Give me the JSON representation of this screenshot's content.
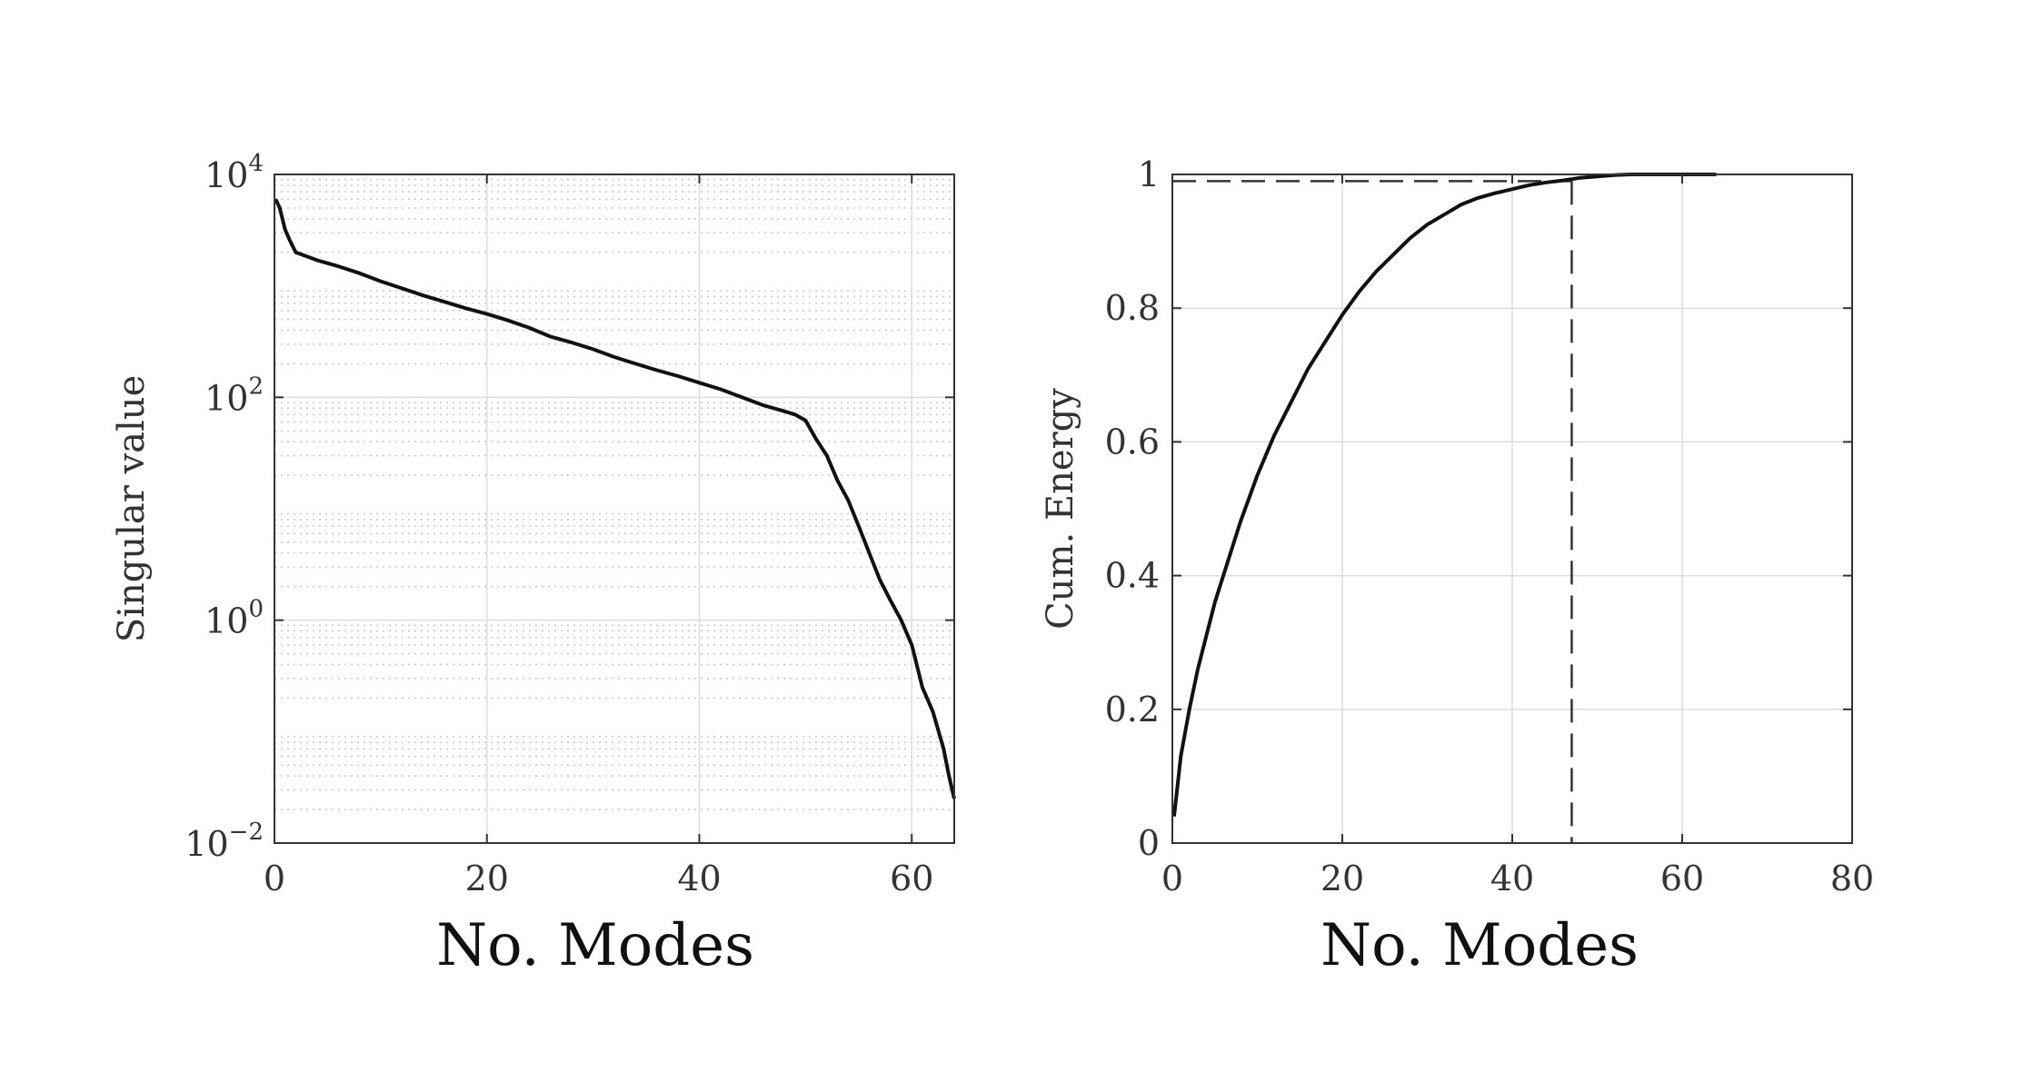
{
  "chart_data": [
    {
      "type": "line",
      "xlabel": "No. Modes",
      "ylabel": "Singular value",
      "yscale": "log",
      "xlim": [
        0,
        64
      ],
      "ylim": [
        0.01,
        10000
      ],
      "xticks": [
        0,
        20,
        40,
        60
      ],
      "x_tick_labels": [
        "0",
        "20",
        "40",
        "60"
      ],
      "yticks": [
        0.01,
        1,
        100,
        10000
      ],
      "y_tick_labels": [
        {
          "base": "10",
          "exp": "−2"
        },
        {
          "base": "10",
          "exp": "0"
        },
        {
          "base": "10",
          "exp": "2"
        },
        {
          "base": "10",
          "exp": "4"
        }
      ],
      "grid": true,
      "minor_grid": true,
      "line_color": "#111111",
      "x": [
        0.1,
        0.5,
        1,
        1.5,
        2,
        4,
        6,
        8,
        10,
        12,
        14,
        16,
        18,
        20,
        22,
        24,
        26,
        28,
        30,
        32,
        34,
        36,
        38,
        40,
        42,
        44,
        46,
        48,
        49,
        50,
        51,
        52,
        53,
        54,
        55,
        56,
        57,
        58,
        59,
        60,
        61,
        62,
        63,
        63.5,
        64
      ],
      "y": [
        6000,
        5000,
        3200,
        2500,
        2000,
        1700,
        1500,
        1300,
        1100,
        950,
        820,
        720,
        630,
        560,
        490,
        420,
        350,
        310,
        270,
        230,
        200,
        175,
        155,
        135,
        118,
        100,
        85,
        75,
        70,
        62,
        42,
        30,
        18,
        12,
        7,
        4,
        2.3,
        1.5,
        1.0,
        0.6,
        0.25,
        0.15,
        0.07,
        0.04,
        0.025
      ]
    },
    {
      "type": "line",
      "xlabel": "No. Modes",
      "ylabel": "Cum. Energy",
      "xlim": [
        0,
        80
      ],
      "ylim": [
        0,
        1
      ],
      "xticks": [
        0,
        20,
        40,
        60,
        80
      ],
      "x_tick_labels": [
        "0",
        "20",
        "40",
        "60",
        "80"
      ],
      "yticks": [
        0,
        0.2,
        0.4,
        0.6,
        0.8,
        1
      ],
      "y_tick_labels": [
        "0",
        "0.2",
        "0.4",
        "0.6",
        "0.8",
        "1"
      ],
      "grid": true,
      "line_color": "#111111",
      "x": [
        0.2,
        1,
        2,
        3,
        4,
        5,
        6,
        8,
        10,
        12,
        14,
        16,
        18,
        20,
        22,
        24,
        26,
        28,
        30,
        32,
        34,
        36,
        38,
        40,
        42,
        44,
        46,
        47,
        48,
        50,
        52,
        54,
        56,
        58,
        60,
        62,
        64
      ],
      "y": [
        0.04,
        0.13,
        0.2,
        0.26,
        0.31,
        0.36,
        0.4,
        0.48,
        0.55,
        0.61,
        0.66,
        0.71,
        0.75,
        0.79,
        0.825,
        0.855,
        0.88,
        0.905,
        0.925,
        0.94,
        0.955,
        0.965,
        0.972,
        0.978,
        0.984,
        0.988,
        0.991,
        0.993,
        0.995,
        0.997,
        0.999,
        1.0,
        1.0,
        1.0,
        1.0,
        1.0,
        1.0
      ],
      "threshold": {
        "x": 47,
        "y": 0.99,
        "style": "dashed"
      }
    }
  ]
}
